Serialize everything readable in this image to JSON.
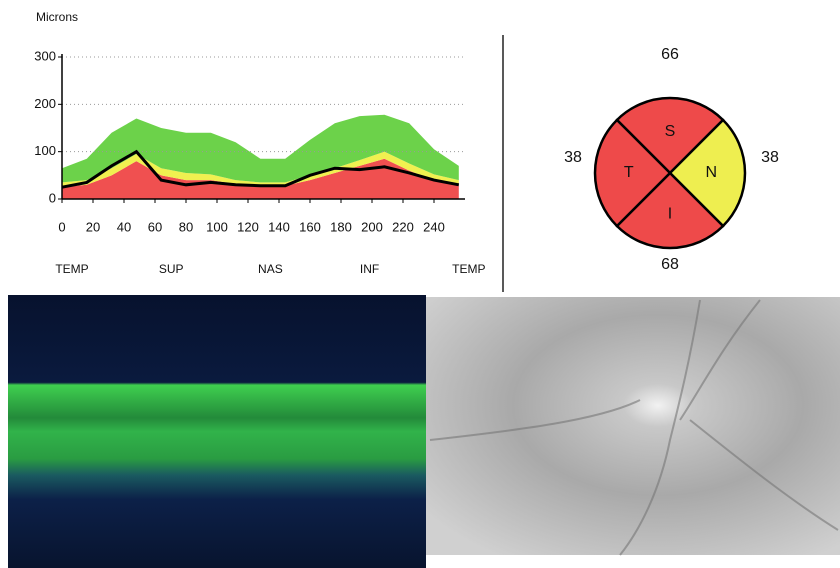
{
  "chart_data": [
    {
      "type": "area",
      "ylabel": "Microns",
      "x": [
        0,
        16,
        32,
        48,
        64,
        80,
        96,
        112,
        128,
        144,
        160,
        176,
        192,
        208,
        224,
        240,
        256
      ],
      "series": [
        {
          "color": "#f05050",
          "values": [
            25,
            30,
            50,
            80,
            50,
            40,
            40,
            32,
            28,
            28,
            40,
            55,
            70,
            85,
            60,
            40,
            30
          ]
        },
        {
          "color": "#f0f050",
          "values": [
            10,
            10,
            15,
            15,
            15,
            15,
            12,
            8,
            7,
            7,
            10,
            10,
            12,
            15,
            15,
            12,
            10
          ]
        },
        {
          "color": "#6cd24a",
          "values": [
            30,
            45,
            75,
            75,
            85,
            85,
            88,
            80,
            50,
            50,
            75,
            95,
            93,
            78,
            85,
            53,
            30
          ]
        }
      ],
      "stacked": true,
      "measured": {
        "color": "#000000",
        "values": [
          25,
          35,
          70,
          100,
          40,
          30,
          35,
          30,
          28,
          28,
          50,
          65,
          62,
          68,
          55,
          40,
          30
        ]
      },
      "xlim": [
        0,
        260
      ],
      "ylim": [
        0,
        300
      ],
      "xticks": [
        0,
        20,
        40,
        60,
        80,
        100,
        120,
        140,
        160,
        180,
        200,
        220,
        240
      ],
      "yticks": [
        0,
        100,
        200,
        300
      ],
      "x2ticks": [
        {
          "value": 0,
          "label": "TEMP"
        },
        {
          "value": 64,
          "label": "SUP"
        },
        {
          "value": 128,
          "label": "NAS"
        },
        {
          "value": 192,
          "label": "INF"
        },
        {
          "value": 256,
          "label": "TEMP"
        }
      ],
      "grid": true
    },
    {
      "type": "quadrant",
      "categories": [
        "S",
        "N",
        "I",
        "T"
      ],
      "values": [
        66,
        38,
        68,
        38
      ],
      "colors": [
        "#ee4a4a",
        "#eeee50",
        "#ee4a4a",
        "#ee4a4a"
      ]
    }
  ]
}
